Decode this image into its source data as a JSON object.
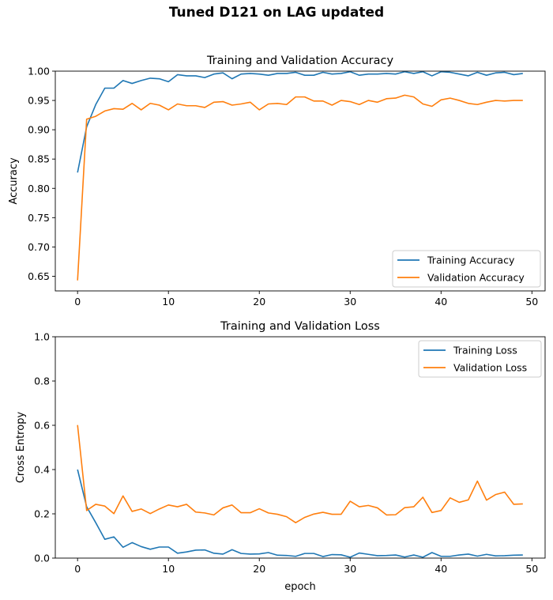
{
  "figure": {
    "title": "Tuned D121 on LAG updated"
  },
  "chart_data": [
    {
      "type": "line",
      "title": "Training and Validation Accuracy",
      "xlabel": "",
      "ylabel": "Accuracy",
      "xlim": [
        -2.45,
        51.45
      ],
      "ylim": [
        0.625,
        1.0
      ],
      "xticks": [
        0,
        10,
        20,
        30,
        40,
        50
      ],
      "yticks": [
        0.65,
        0.7,
        0.75,
        0.8,
        0.85,
        0.9,
        0.95,
        1.0
      ],
      "ytick_labels": [
        "0.65",
        "0.70",
        "0.75",
        "0.80",
        "0.85",
        "0.90",
        "0.95",
        "1.00"
      ],
      "legend": "lower-right",
      "grid": false,
      "series": [
        {
          "name": "Training Accuracy",
          "color": "#1f77b4",
          "x": [
            0,
            1,
            2,
            3,
            4,
            5,
            6,
            7,
            8,
            9,
            10,
            11,
            12,
            13,
            14,
            15,
            16,
            17,
            18,
            19,
            20,
            21,
            22,
            23,
            24,
            25,
            26,
            27,
            28,
            29,
            30,
            31,
            32,
            33,
            34,
            35,
            36,
            37,
            38,
            39,
            40,
            41,
            42,
            43,
            44,
            45,
            46,
            47,
            48,
            49
          ],
          "values": [
            0.827,
            0.905,
            0.943,
            0.971,
            0.971,
            0.984,
            0.979,
            0.984,
            0.988,
            0.987,
            0.982,
            0.994,
            0.992,
            0.992,
            0.989,
            0.995,
            0.997,
            0.987,
            0.995,
            0.996,
            0.995,
            0.993,
            0.996,
            0.996,
            0.998,
            0.993,
            0.993,
            0.998,
            0.995,
            0.996,
            0.999,
            0.993,
            0.995,
            0.995,
            0.996,
            0.995,
            0.999,
            0.996,
            0.999,
            0.992,
            0.999,
            0.998,
            0.995,
            0.992,
            0.998,
            0.993,
            0.997,
            0.998,
            0.994,
            0.996
          ]
        },
        {
          "name": "Validation Accuracy",
          "color": "#ff7f0e",
          "x": [
            0,
            1,
            2,
            3,
            4,
            5,
            6,
            7,
            8,
            9,
            10,
            11,
            12,
            13,
            14,
            15,
            16,
            17,
            18,
            19,
            20,
            21,
            22,
            23,
            24,
            25,
            26,
            27,
            28,
            29,
            30,
            31,
            32,
            33,
            34,
            35,
            36,
            37,
            38,
            39,
            40,
            41,
            42,
            43,
            44,
            45,
            46,
            47,
            48,
            49
          ],
          "values": [
            0.643,
            0.918,
            0.923,
            0.932,
            0.936,
            0.935,
            0.945,
            0.934,
            0.945,
            0.942,
            0.934,
            0.944,
            0.941,
            0.941,
            0.938,
            0.947,
            0.948,
            0.942,
            0.944,
            0.947,
            0.934,
            0.944,
            0.945,
            0.943,
            0.956,
            0.956,
            0.949,
            0.949,
            0.942,
            0.95,
            0.948,
            0.943,
            0.95,
            0.947,
            0.953,
            0.954,
            0.959,
            0.956,
            0.944,
            0.94,
            0.951,
            0.954,
            0.95,
            0.945,
            0.943,
            0.947,
            0.95,
            0.949,
            0.95,
            0.95
          ]
        }
      ]
    },
    {
      "type": "line",
      "title": "Training and Validation Loss",
      "xlabel": "epoch",
      "ylabel": "Cross Entropy",
      "xlim": [
        -2.45,
        51.45
      ],
      "ylim": [
        0.0,
        1.0
      ],
      "xticks": [
        0,
        10,
        20,
        30,
        40,
        50
      ],
      "yticks": [
        0.0,
        0.2,
        0.4,
        0.6,
        0.8,
        1.0
      ],
      "ytick_labels": [
        "0.0",
        "0.2",
        "0.4",
        "0.6",
        "0.8",
        "1.0"
      ],
      "legend": "top-right",
      "grid": false,
      "series": [
        {
          "name": "Training Loss",
          "color": "#1f77b4",
          "x": [
            0,
            1,
            2,
            3,
            4,
            5,
            6,
            7,
            8,
            9,
            10,
            11,
            12,
            13,
            14,
            15,
            16,
            17,
            18,
            19,
            20,
            21,
            22,
            23,
            24,
            25,
            26,
            27,
            28,
            29,
            30,
            31,
            32,
            33,
            34,
            35,
            36,
            37,
            38,
            39,
            40,
            41,
            42,
            43,
            44,
            45,
            46,
            47,
            48,
            49
          ],
          "values": [
            0.4,
            0.232,
            0.16,
            0.085,
            0.096,
            0.049,
            0.07,
            0.052,
            0.04,
            0.05,
            0.05,
            0.022,
            0.028,
            0.036,
            0.037,
            0.022,
            0.018,
            0.038,
            0.021,
            0.018,
            0.019,
            0.025,
            0.013,
            0.012,
            0.008,
            0.021,
            0.021,
            0.007,
            0.016,
            0.015,
            0.004,
            0.023,
            0.017,
            0.011,
            0.012,
            0.014,
            0.005,
            0.014,
            0.004,
            0.025,
            0.008,
            0.008,
            0.014,
            0.018,
            0.009,
            0.017,
            0.01,
            0.011,
            0.013,
            0.014
          ]
        },
        {
          "name": "Validation Loss",
          "color": "#ff7f0e",
          "x": [
            0,
            1,
            2,
            3,
            4,
            5,
            6,
            7,
            8,
            9,
            10,
            11,
            12,
            13,
            14,
            15,
            16,
            17,
            18,
            19,
            20,
            21,
            22,
            23,
            24,
            25,
            26,
            27,
            28,
            29,
            30,
            31,
            32,
            33,
            34,
            35,
            36,
            37,
            38,
            39,
            40,
            41,
            42,
            43,
            44,
            45,
            46,
            47,
            48,
            49
          ],
          "values": [
            0.601,
            0.215,
            0.243,
            0.235,
            0.201,
            0.281,
            0.211,
            0.222,
            0.201,
            0.222,
            0.24,
            0.232,
            0.243,
            0.208,
            0.204,
            0.195,
            0.227,
            0.24,
            0.205,
            0.205,
            0.223,
            0.204,
            0.198,
            0.187,
            0.16,
            0.184,
            0.199,
            0.207,
            0.198,
            0.198,
            0.257,
            0.232,
            0.238,
            0.227,
            0.195,
            0.196,
            0.228,
            0.232,
            0.275,
            0.206,
            0.215,
            0.272,
            0.252,
            0.263,
            0.348,
            0.262,
            0.287,
            0.298,
            0.243,
            0.245
          ]
        }
      ]
    }
  ]
}
